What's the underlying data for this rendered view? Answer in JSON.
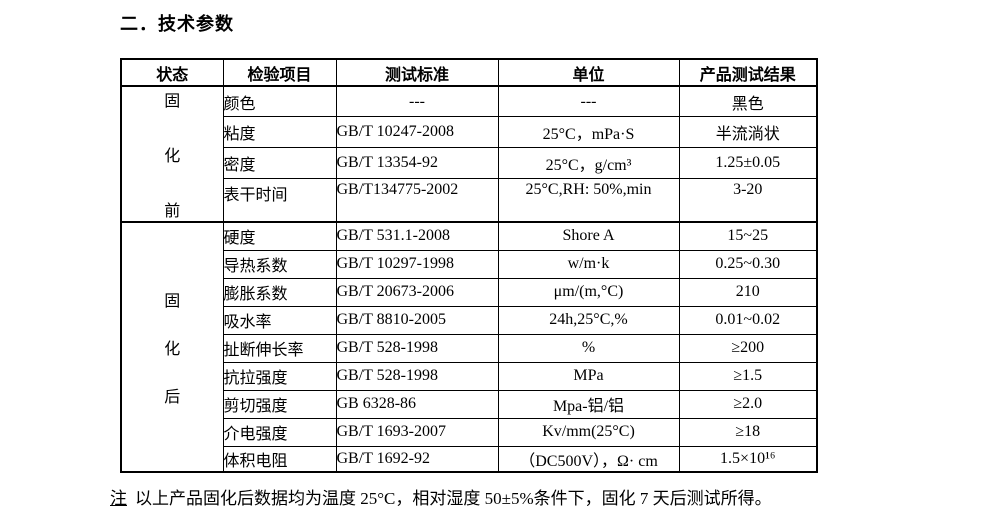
{
  "page": {
    "title": "二．技术参数",
    "note": {
      "label": "注",
      "text": "以上产品固化后数据均为温度 25°C，相对湿度 50±5%条件下，固化 7 天后测试所得。"
    },
    "colors": {
      "text": "#000000",
      "background": "#ffffff",
      "table_border": "#000000"
    }
  },
  "table": {
    "headers": [
      "状态",
      "检验项目",
      "测试标准",
      "单位",
      "产品测试结果"
    ],
    "groups": [
      {
        "state": "固化前",
        "state_chars": [
          "固",
          "化",
          "前"
        ],
        "rows": [
          {
            "item": "颜色",
            "standard": "---",
            "unit": "---",
            "result": "黑色"
          },
          {
            "item": "粘度",
            "standard": "GB/T 10247-2008",
            "unit": "25°C，mPa·S",
            "result": "半流淌状"
          },
          {
            "item": "密度",
            "standard": "GB/T 13354-92",
            "unit": "25°C，g/cm³",
            "result": "1.25±0.05"
          },
          {
            "item": "表干时间",
            "standard": "GB/T134775-2002",
            "unit": "25°C,RH: 50%,min",
            "result": "3-20"
          }
        ]
      },
      {
        "state": "固化后",
        "state_chars": [
          "固",
          "化",
          "后"
        ],
        "rows": [
          {
            "item": "硬度",
            "standard": "GB/T 531.1-2008",
            "unit": "Shore A",
            "result": "15~25"
          },
          {
            "item": "导热系数",
            "standard": "GB/T 10297-1998",
            "unit": "w/m·k",
            "result": "0.25~0.30"
          },
          {
            "item": "膨胀系数",
            "standard": "GB/T 20673-2006",
            "unit": "μm/(m,°C)",
            "result": "210"
          },
          {
            "item": "吸水率",
            "standard": "GB/T 8810-2005",
            "unit": "24h,25°C,%",
            "result": "0.01~0.02"
          },
          {
            "item": "扯断伸长率",
            "standard": "GB/T 528-1998",
            "unit": "%",
            "result": "≥200"
          },
          {
            "item": "抗拉强度",
            "standard": "GB/T 528-1998",
            "unit": "MPa",
            "result": "≥1.5"
          },
          {
            "item": "剪切强度",
            "standard": "GB 6328-86",
            "unit": "Mpa-铝/铝",
            "result": "≥2.0"
          },
          {
            "item": "介电强度",
            "standard": "GB/T 1693-2007",
            "unit": "Kv/mm(25°C)",
            "result": "≥18"
          },
          {
            "item": "体积电阻",
            "standard": "GB/T 1692-92",
            "unit": "（DC500V），Ω· cm",
            "result": "1.5×10¹⁶"
          }
        ]
      }
    ]
  }
}
